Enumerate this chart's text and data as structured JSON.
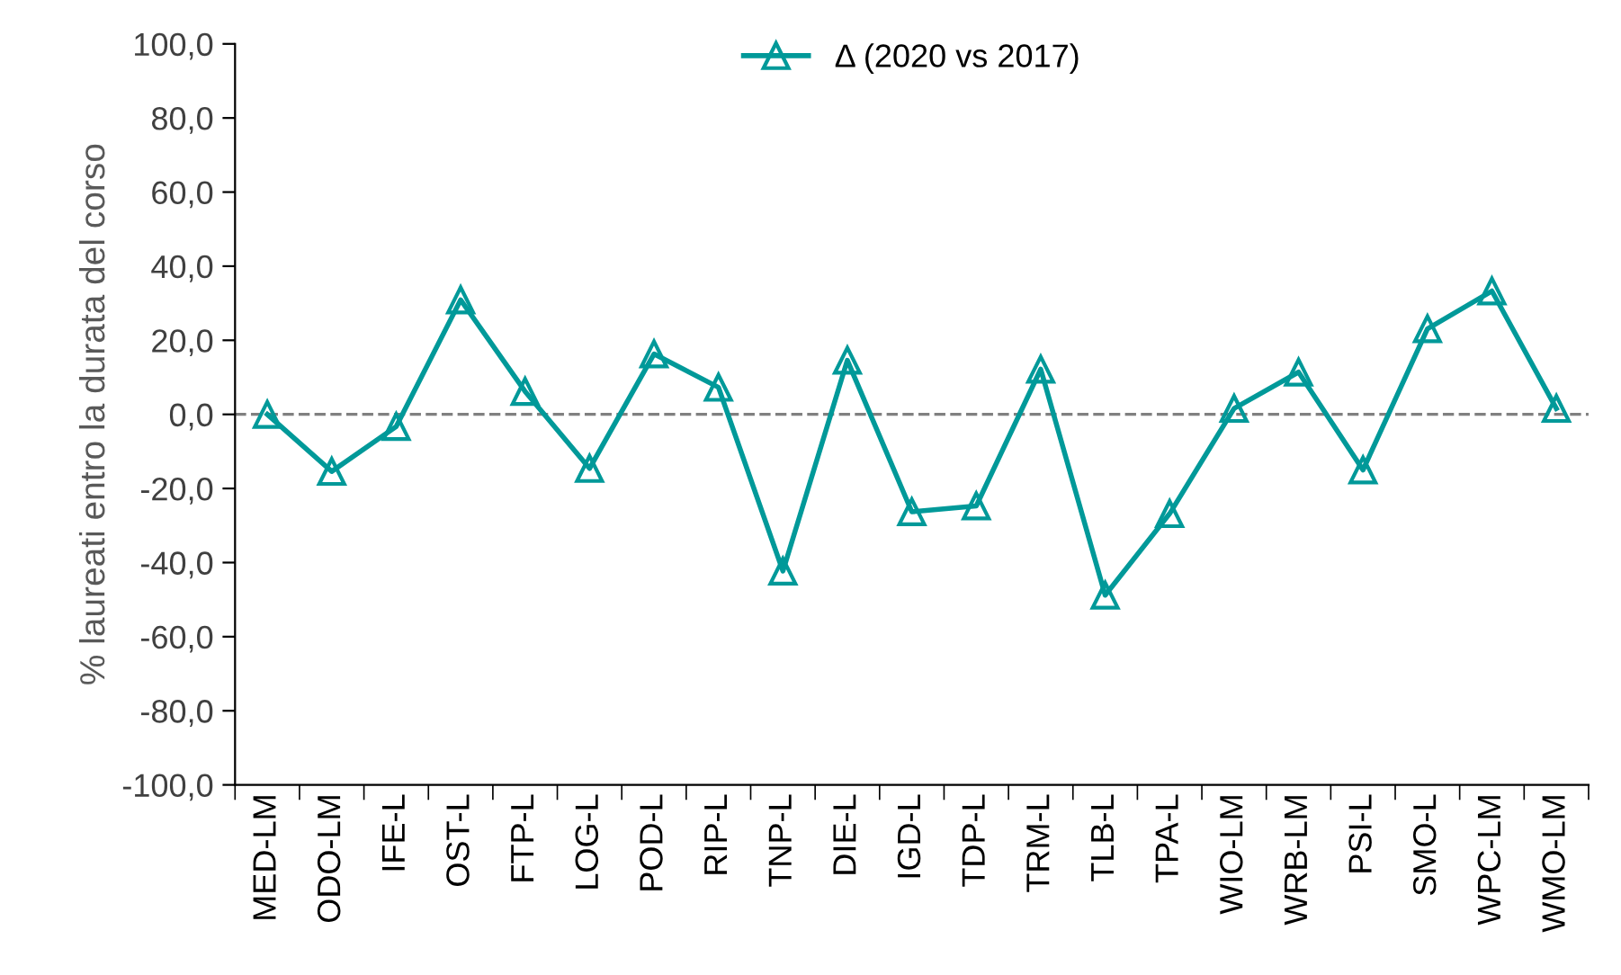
{
  "chart_data": {
    "type": "line",
    "ylabel": "% laureati entro la durata del corso",
    "categories": [
      "MED-LM",
      "ODO-LM",
      "IFE-L",
      "OST-L",
      "FTP-L",
      "LOG-L",
      "POD-L",
      "RIP-L",
      "TNP-L",
      "DIE-L",
      "IGD-L",
      "TDP-L",
      "TRM-L",
      "TLB-L",
      "TPA-L",
      "WIO-LM",
      "WRB-LM",
      "PSI-L",
      "SMO-L",
      "WPC-LM",
      "WMO-LM"
    ],
    "series": [
      {
        "name": "Δ (2020 vs 2017)",
        "color": "#009999",
        "values": [
          0,
          -15.4,
          -3.3,
          30.9,
          6.2,
          -14.6,
          16.3,
          7.3,
          -42.3,
          14.6,
          -26.3,
          -24.7,
          12.2,
          -48.8,
          -26.8,
          1.6,
          11.4,
          -15.0,
          23.1,
          33.3,
          1.6
        ]
      }
    ],
    "ylim": [
      -100,
      100
    ],
    "yticks": [
      {
        "value": -100,
        "label": "-100,0"
      },
      {
        "value": -80,
        "label": "-80,0"
      },
      {
        "value": -60,
        "label": "-60,0"
      },
      {
        "value": -40,
        "label": "-40,0"
      },
      {
        "value": -20,
        "label": "-20,0"
      },
      {
        "value": 0,
        "label": "0,0"
      },
      {
        "value": 20,
        "label": "20,0"
      },
      {
        "value": 40,
        "label": "40,0"
      },
      {
        "value": 60,
        "label": "60,0"
      },
      {
        "value": 80,
        "label": "80,0"
      },
      {
        "value": 100,
        "label": "100,0"
      }
    ],
    "ref_lines": [
      {
        "axis": "y",
        "value": 0,
        "color": "#808080",
        "line_style": "dashed"
      }
    ],
    "marker": "triangle",
    "line_style": "solid",
    "legend": "top",
    "grid": false
  }
}
